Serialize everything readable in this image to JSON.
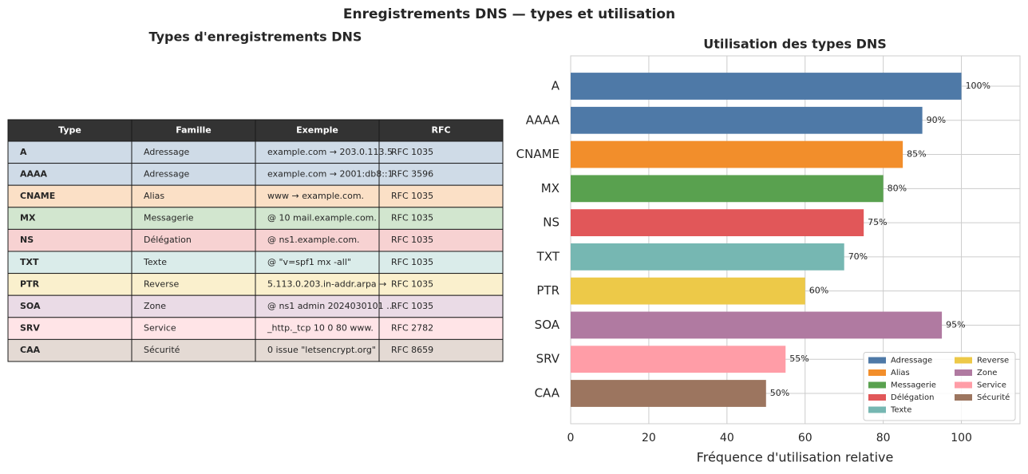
{
  "title": "Enregistrements DNS — types et utilisation",
  "table": {
    "title": "Types d'enregistrements DNS",
    "columns": [
      "Type",
      "Famille",
      "Exemple",
      "RFC"
    ],
    "rows": [
      [
        "A",
        "Adressage",
        "example.com → 203.0.113.5",
        "RFC 1035"
      ],
      [
        "AAAA",
        "Adressage",
        "example.com → 2001:db8::1",
        "RFC 3596"
      ],
      [
        "CNAME",
        "Alias",
        "www → example.com.",
        "RFC 1035"
      ],
      [
        "MX",
        "Messagerie",
        "@ 10 mail.example.com.",
        "RFC 1035"
      ],
      [
        "NS",
        "Délégation",
        "@ ns1.example.com.",
        "RFC 1035"
      ],
      [
        "TXT",
        "Texte",
        "@ \"v=spf1 mx -all\"",
        "RFC 1035"
      ],
      [
        "PTR",
        "Reverse",
        "5.113.0.203.in-addr.arpa →",
        "RFC 1035"
      ],
      [
        "SOA",
        "Zone",
        "@ ns1 admin 2024030101 …",
        "RFC 1035"
      ],
      [
        "SRV",
        "Service",
        "_http._tcp 10 0 80 www.",
        "RFC 2782"
      ],
      [
        "CAA",
        "Sécurité",
        "0 issue \"letsencrypt.org\"",
        "RFC 8659"
      ]
    ]
  },
  "chart_data": {
    "type": "barh",
    "title": "Utilisation des types DNS",
    "x_label": "Fréquence d'utilisation relative",
    "categories": [
      "A",
      "AAAA",
      "CNAME",
      "MX",
      "NS",
      "TXT",
      "PTR",
      "SOA",
      "SRV",
      "CAA"
    ],
    "values": [
      100,
      90,
      85,
      80,
      75,
      70,
      60,
      95,
      55,
      50
    ],
    "value_labels": [
      "100%",
      "90%",
      "85%",
      "80%",
      "75%",
      "70%",
      "60%",
      "95%",
      "55%",
      "50%"
    ],
    "colors": [
      "#4e79a7",
      "#4e79a7",
      "#f28e2b",
      "#59a14f",
      "#e15759",
      "#76b7b2",
      "#edc948",
      "#b07aa1",
      "#ff9da7",
      "#9c755f"
    ],
    "xlim": [
      0,
      115
    ],
    "xticks": [
      0,
      20,
      40,
      60,
      80,
      100
    ],
    "grid": true,
    "legend_position": "lower right",
    "legend": [
      {
        "name": "Adressage",
        "color": "#4e79a7"
      },
      {
        "name": "Alias",
        "color": "#f28e2b"
      },
      {
        "name": "Messagerie",
        "color": "#59a14f"
      },
      {
        "name": "Délégation",
        "color": "#e15759"
      },
      {
        "name": "Texte",
        "color": "#76b7b2"
      },
      {
        "name": "Reverse",
        "color": "#edc948"
      },
      {
        "name": "Zone",
        "color": "#b07aa1"
      },
      {
        "name": "Service",
        "color": "#ff9da7"
      },
      {
        "name": "Sécurité",
        "color": "#9c755f"
      }
    ]
  }
}
